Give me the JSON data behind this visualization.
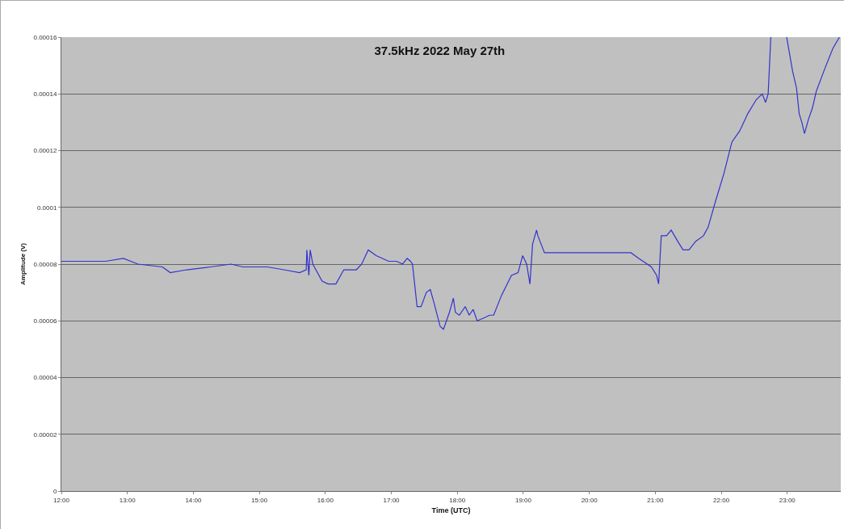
{
  "chart_data": {
    "type": "line",
    "title": "37.5kHz 2022 May 27th",
    "xlabel": "Time (UTC)",
    "ylabel": "Amplitude (V)",
    "x": [
      12.0,
      12.31,
      12.67,
      12.94,
      13.16,
      13.53,
      13.65,
      13.9,
      14.26,
      14.57,
      14.75,
      15.12,
      15.37,
      15.61,
      15.71,
      15.72,
      15.75,
      15.77,
      15.81,
      15.95,
      16.04,
      16.16,
      16.28,
      16.47,
      16.55,
      16.65,
      16.77,
      16.96,
      17.08,
      17.17,
      17.24,
      17.29,
      17.32,
      17.39,
      17.45,
      17.53,
      17.59,
      17.65,
      17.74,
      17.79,
      17.88,
      17.94,
      17.97,
      18.03,
      18.12,
      18.18,
      18.24,
      18.3,
      18.4,
      18.49,
      18.55,
      18.67,
      18.82,
      18.92,
      18.99,
      19.05,
      19.1,
      19.14,
      19.2,
      19.22,
      19.32,
      19.53,
      19.89,
      20.38,
      20.63,
      20.75,
      20.94,
      21.02,
      21.05,
      21.09,
      21.17,
      21.24,
      21.34,
      21.42,
      21.51,
      21.61,
      21.73,
      21.8,
      21.91,
      22.04,
      22.16,
      22.28,
      22.4,
      22.53,
      22.62,
      22.67,
      22.71,
      22.75,
      22.87,
      22.99,
      23.08,
      23.14,
      23.18,
      23.22,
      23.26,
      23.32,
      23.38,
      23.44,
      23.57,
      23.69,
      23.79
    ],
    "series": [
      {
        "color": "#3333cc",
        "values": [
          8.1e-05,
          8.1e-05,
          8.1e-05,
          8.2e-05,
          8e-05,
          7.9e-05,
          7.7e-05,
          7.8e-05,
          7.9e-05,
          8e-05,
          7.9e-05,
          7.9e-05,
          7.8e-05,
          7.7e-05,
          7.8e-05,
          8.5e-05,
          7.6e-05,
          8.5e-05,
          8e-05,
          7.4e-05,
          7.3e-05,
          7.3e-05,
          7.8e-05,
          7.8e-05,
          8e-05,
          8.5e-05,
          8.3e-05,
          8.1e-05,
          8.1e-05,
          8e-05,
          8.2e-05,
          8.1e-05,
          8e-05,
          6.5e-05,
          6.5e-05,
          7e-05,
          7.1e-05,
          6.6e-05,
          5.8e-05,
          5.7e-05,
          6.3e-05,
          6.8e-05,
          6.3e-05,
          6.2e-05,
          6.5e-05,
          6.2e-05,
          6.4e-05,
          6e-05,
          6.1e-05,
          6.2e-05,
          6.2e-05,
          6.9e-05,
          7.6e-05,
          7.7e-05,
          8.3e-05,
          8e-05,
          7.3e-05,
          8.7e-05,
          9.2e-05,
          9e-05,
          8.4e-05,
          8.4e-05,
          8.4e-05,
          8.4e-05,
          8.4e-05,
          8.2e-05,
          7.9e-05,
          7.6e-05,
          7.3e-05,
          9e-05,
          9e-05,
          9.2e-05,
          8.8e-05,
          8.5e-05,
          8.5e-05,
          8.8e-05,
          9e-05,
          9.3e-05,
          0.000102,
          0.000112,
          0.000123,
          0.000127,
          0.000133,
          0.000138,
          0.00014,
          0.000137,
          0.00014,
          0.00016,
          null,
          0.00016,
          0.000148,
          0.000142,
          0.000133,
          0.00013,
          0.000126,
          0.000131,
          0.000135,
          0.000141,
          0.000149,
          0.000156,
          0.00016
        ]
      }
    ],
    "xlim": [
      12,
      23.81
    ],
    "xticks": [
      {
        "value": 12,
        "label": "12:00"
      },
      {
        "value": 13,
        "label": "13:00"
      },
      {
        "value": 14,
        "label": "14:00"
      },
      {
        "value": 15,
        "label": "15:00"
      },
      {
        "value": 16,
        "label": "16:00"
      },
      {
        "value": 17,
        "label": "17:00"
      },
      {
        "value": 18,
        "label": "18:00"
      },
      {
        "value": 19,
        "label": "19:00"
      },
      {
        "value": 20,
        "label": "20:00"
      },
      {
        "value": 21,
        "label": "21:00"
      },
      {
        "value": 22,
        "label": "22:00"
      },
      {
        "value": 23,
        "label": "23:00"
      }
    ],
    "ylim": [
      0,
      0.00016
    ],
    "yticks": [
      0,
      {
        "value": 2e-05,
        "label": "0.00002"
      },
      {
        "value": 4e-05,
        "label": "0.00004"
      },
      {
        "value": 6e-05,
        "label": "0.00006"
      },
      {
        "value": 8e-05,
        "label": "0.00008"
      },
      0.0001,
      0.00012,
      0.00014,
      0.00016
    ],
    "grid": "y",
    "marker": "none",
    "line_style": "solid"
  }
}
